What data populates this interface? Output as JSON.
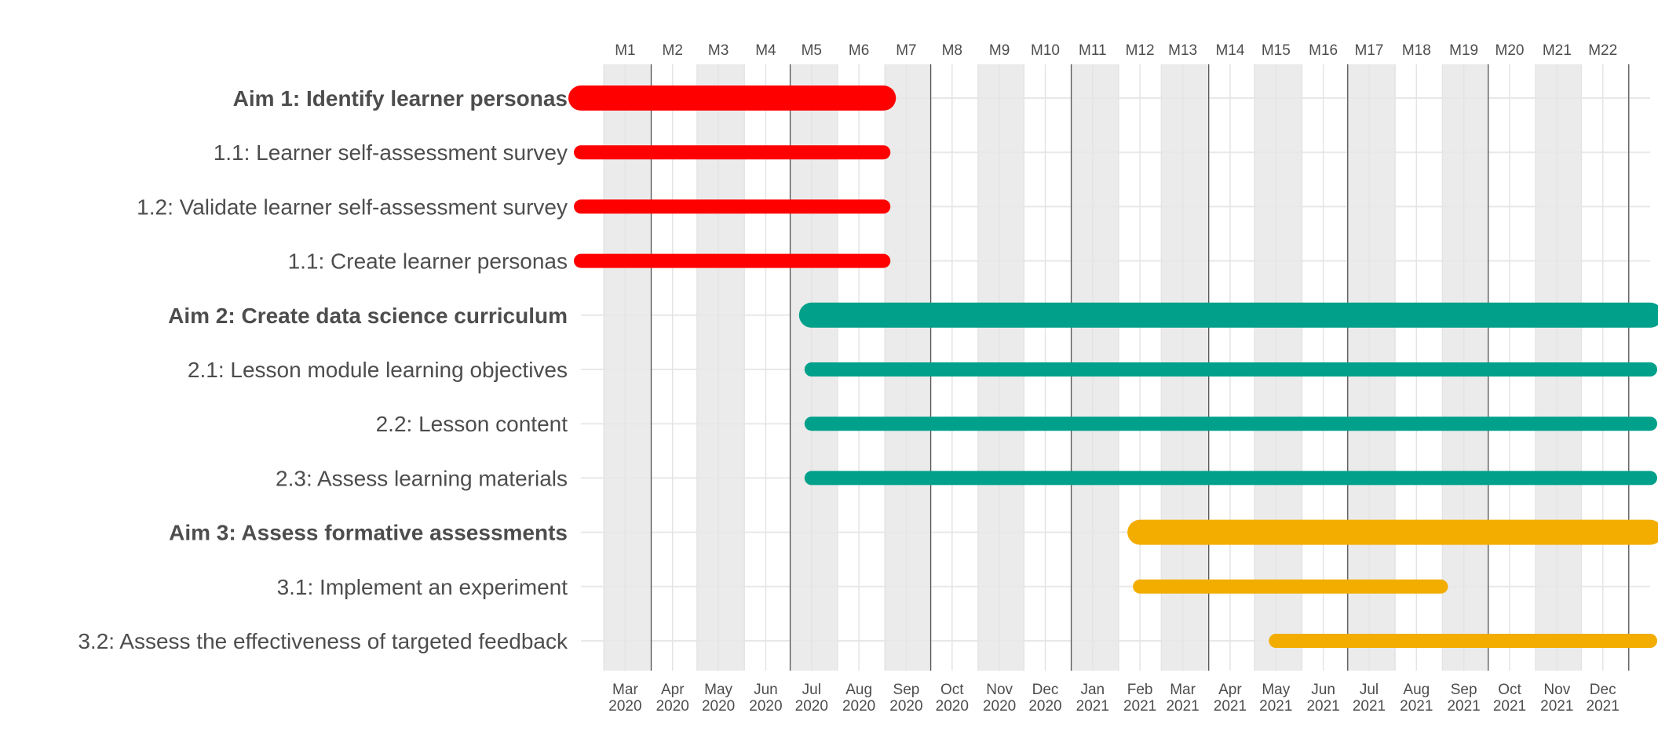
{
  "chart_data": {
    "type": "gantt",
    "x_axis_top": {
      "labels": [
        "M1",
        "M2",
        "M3",
        "M4",
        "M5",
        "M6",
        "M7",
        "M8",
        "M9",
        "M10",
        "M11",
        "M12",
        "M13",
        "M14",
        "M15",
        "M16",
        "M17",
        "M18",
        "M19",
        "M20",
        "M21",
        "M22"
      ]
    },
    "x_axis_bottom": {
      "months": [
        "Mar",
        "Apr",
        "May",
        "Jun",
        "Jul",
        "Aug",
        "Sep",
        "Oct",
        "Nov",
        "Dec",
        "Jan",
        "Feb",
        "Mar",
        "Apr",
        "May",
        "Jun",
        "Jul",
        "Aug",
        "Sep",
        "Oct",
        "Nov",
        "Dec"
      ],
      "years": [
        "2020",
        "2020",
        "2020",
        "2020",
        "2020",
        "2020",
        "2020",
        "2020",
        "2020",
        "2020",
        "2021",
        "2021",
        "2021",
        "2021",
        "2021",
        "2021",
        "2021",
        "2021",
        "2021",
        "2021",
        "2021",
        "2021"
      ]
    },
    "xlim": [
      "2020-02-15",
      "2022-01-15"
    ],
    "grid": true,
    "shaded_bands": [
      [
        "2020-03-01",
        "2020-04-01"
      ],
      [
        "2020-05-01",
        "2020-06-01"
      ],
      [
        "2020-07-01",
        "2020-08-01"
      ],
      [
        "2020-09-01",
        "2020-10-01"
      ],
      [
        "2020-11-01",
        "2020-12-01"
      ],
      [
        "2021-01-01",
        "2021-02-01"
      ],
      [
        "2021-03-01",
        "2021-04-01"
      ],
      [
        "2021-05-01",
        "2021-06-01"
      ],
      [
        "2021-07-01",
        "2021-08-01"
      ],
      [
        "2021-09-01",
        "2021-10-01"
      ],
      [
        "2021-11-01",
        "2021-12-01"
      ]
    ],
    "quarter_lines": [
      "2020-04-01",
      "2020-07-01",
      "2020-10-01",
      "2021-01-01",
      "2021-04-01",
      "2021-07-01",
      "2021-10-01",
      "2022-01-01"
    ],
    "tasks": [
      {
        "label": "Aim 1: Identify learner personas",
        "aim": true,
        "start": "2020-02-15",
        "end": "2020-08-31",
        "color": "#FF0000"
      },
      {
        "label": "1.1: Learner self-assessment survey",
        "aim": false,
        "start": "2020-02-15",
        "end": "2020-08-31",
        "color": "#FF0000"
      },
      {
        "label": "1.2: Validate learner self-assessment survey",
        "aim": false,
        "start": "2020-02-15",
        "end": "2020-08-31",
        "color": "#FF0000"
      },
      {
        "label": "1.1: Create learner personas",
        "aim": false,
        "start": "2020-02-15",
        "end": "2020-08-31",
        "color": "#FF0000"
      },
      {
        "label": "Aim 2: Create data science curriculum",
        "aim": true,
        "start": "2020-07-15",
        "end": "2022-01-15",
        "color": "#00A08A"
      },
      {
        "label": "2.1: Lesson module learning objectives",
        "aim": false,
        "start": "2020-07-15",
        "end": "2022-01-15",
        "color": "#00A08A"
      },
      {
        "label": "2.2: Lesson content",
        "aim": false,
        "start": "2020-07-15",
        "end": "2022-01-15",
        "color": "#00A08A"
      },
      {
        "label": "2.3: Assess learning materials",
        "aim": false,
        "start": "2020-07-15",
        "end": "2022-01-15",
        "color": "#00A08A"
      },
      {
        "label": "Aim 3: Assess formative assessments",
        "aim": true,
        "start": "2021-02-15",
        "end": "2022-01-15",
        "color": "#F2AD00"
      },
      {
        "label": "3.1: Implement an experiment",
        "aim": false,
        "start": "2021-02-15",
        "end": "2021-08-31",
        "color": "#F2AD00"
      },
      {
        "label": "3.2: Assess the effectiveness of targeted feedback",
        "aim": false,
        "start": "2021-05-15",
        "end": "2022-01-15",
        "color": "#F2AD00"
      }
    ]
  }
}
